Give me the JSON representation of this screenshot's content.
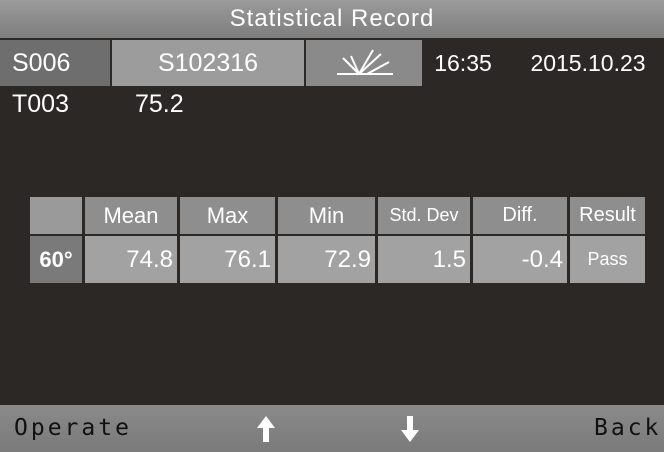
{
  "header": {
    "title": "Statistical Record"
  },
  "info": {
    "sample": "S006",
    "standard": "S102316",
    "time": "16:35",
    "date": "2015.10.23"
  },
  "reading": {
    "test": "T003",
    "value": "75.2"
  },
  "table": {
    "angle": "60°",
    "headers": [
      "Mean",
      "Max",
      "Min",
      "Std. Dev",
      "Diff.",
      "Result"
    ],
    "values": [
      "74.8",
      "76.1",
      "72.9",
      "1.5",
      "-0.4",
      "Pass"
    ]
  },
  "footer": {
    "left": "Operate",
    "right": "Back"
  }
}
